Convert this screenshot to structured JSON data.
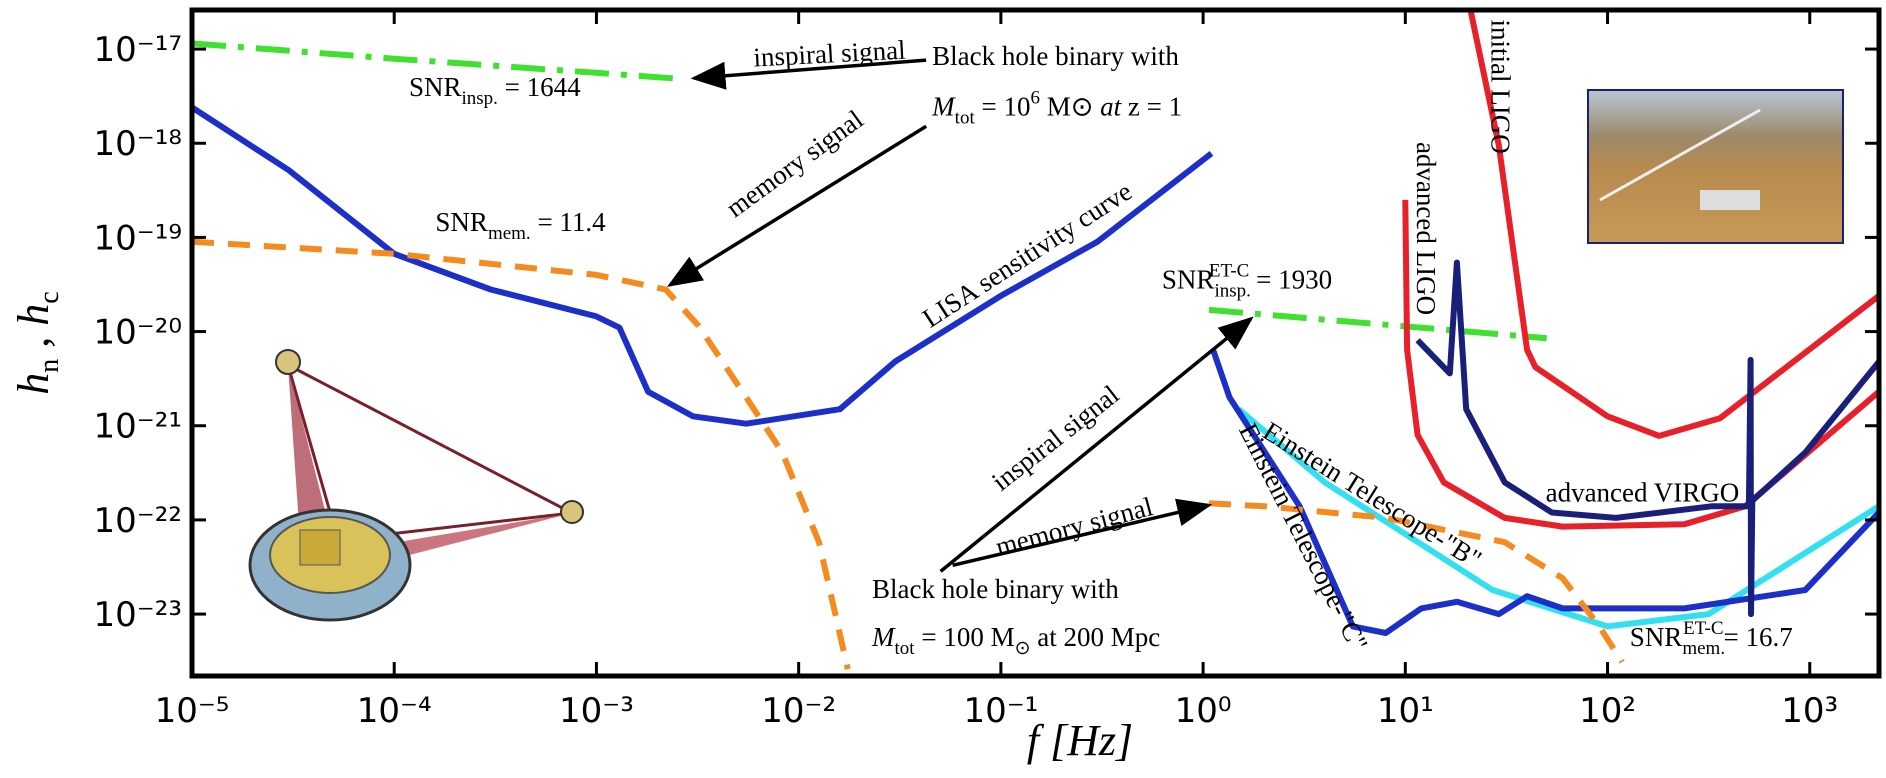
{
  "chart_data": {
    "type": "line",
    "log_x": true,
    "log_y": true,
    "xlabel": "f [Hz]",
    "ylabel": [
      "h",
      "n",
      " , ",
      "h",
      "c"
    ],
    "xlim": [
      1e-05,
      2200
    ],
    "ylim": [
      2.2e-24,
      2.6e-17
    ],
    "xticks": [
      {
        "value": 1e-05,
        "label": "10⁻⁵"
      },
      {
        "value": 0.0001,
        "label": "10⁻⁴"
      },
      {
        "value": 0.001,
        "label": "10⁻³"
      },
      {
        "value": 0.01,
        "label": "10⁻²"
      },
      {
        "value": 0.1,
        "label": "10⁻¹"
      },
      {
        "value": 1,
        "label": "10⁰"
      },
      {
        "value": 10,
        "label": "10¹"
      },
      {
        "value": 100,
        "label": "10²"
      },
      {
        "value": 1000,
        "label": "10³"
      }
    ],
    "yticks": [
      {
        "value": 1e-17,
        "label": "10⁻¹⁷"
      },
      {
        "value": 1e-18,
        "label": "10⁻¹⁸"
      },
      {
        "value": 1e-19,
        "label": "10⁻¹⁹"
      },
      {
        "value": 1e-20,
        "label": "10⁻²⁰"
      },
      {
        "value": 1e-21,
        "label": "10⁻²¹"
      },
      {
        "value": 1e-22,
        "label": "10⁻²²"
      },
      {
        "value": 1e-23,
        "label": "10⁻²³"
      }
    ],
    "series": [
      {
        "color": "#3fe030",
        "linestyle": "dash-dot",
        "x": [
          1e-05,
          0.0001,
          0.001,
          0.0027
        ],
        "values": [
          1.15e-17,
          7.9e-18,
          5.6e-18,
          4.8e-18
        ]
      },
      {
        "color": "#1d2fc9",
        "linestyle": "solid",
        "x": [
          1e-05,
          3e-05,
          0.0001,
          0.0003,
          0.001,
          0.0013,
          0.0018,
          0.003,
          0.0055,
          0.016,
          0.03,
          0.1,
          0.3,
          1.1
        ],
        "values": [
          2.4e-18,
          5.2e-19,
          6.7e-20,
          2.8e-20,
          1.45e-20,
          1.1e-20,
          2.3e-21,
          1.26e-21,
          1.05e-21,
          1.5e-21,
          4.8e-21,
          2.4e-20,
          9e-20,
          7.8e-19
        ]
      },
      {
        "color": "#f58a1f",
        "linestyle": "dash",
        "x": [
          1e-05,
          0.0001,
          0.001,
          0.0022,
          0.0032,
          0.0055,
          0.0083,
          0.0126,
          0.0175
        ],
        "values": [
          9e-20,
          6.7e-20,
          4e-20,
          2.8e-20,
          1.15e-20,
          2e-21,
          5.2e-22,
          5.8e-23,
          2.6e-24
        ]
      },
      {
        "color": "#3fe030",
        "linestyle": "dash-dot",
        "x": [
          1.07,
          50
        ],
        "values": [
          1.7e-20,
          8.5e-21
        ]
      },
      {
        "color": "#33e0f0",
        "linestyle": "solid",
        "x": [
          1.5,
          4,
          27,
          100,
          316,
          2200
        ],
        "values": [
          1.5e-21,
          2.5e-22,
          1.8e-23,
          7.4e-24,
          1e-23,
          1.4e-22
        ]
      },
      {
        "color": "#1d2fc9",
        "linestyle": "solid",
        "x": [
          1.12,
          1.35,
          3,
          5.5,
          8,
          12,
          18,
          29,
          40,
          60,
          240,
          950,
          2200
        ],
        "values": [
          6.4e-21,
          2e-21,
          1.4e-22,
          7.4e-24,
          6.3e-24,
          1.15e-23,
          1.35e-23,
          1e-23,
          1.55e-23,
          1.15e-23,
          1.15e-23,
          1.8e-23,
          1.2e-22
        ]
      },
      {
        "color": "#f58a1f",
        "linestyle": "dash",
        "x": [
          1.07,
          2,
          8,
          31,
          60,
          91,
          118
        ],
        "values": [
          1.5e-22,
          1.4e-22,
          1.05e-22,
          5.8e-23,
          2.4e-23,
          7.4e-24,
          3.1e-24
        ]
      },
      {
        "color": "#e8202a",
        "linestyle": "solid",
        "x": [
          21,
          29,
          40,
          44,
          100,
          180,
          360,
          2200
        ],
        "values": [
          2.6e-17,
          9.5e-19,
          6.4e-21,
          4.2e-21,
          1.26e-21,
          7.8e-22,
          1.2e-21,
          2.4e-20
        ]
      },
      {
        "color": "#e8202a",
        "linestyle": "solid",
        "x": [
          10,
          10.2,
          11.5,
          15.5,
          31,
          60,
          240,
          480,
          2200
        ],
        "values": [
          2.5e-19,
          6.4e-21,
          8e-22,
          2.5e-22,
          1.05e-22,
          8.5e-23,
          9e-23,
          1.4e-22,
          2.3e-21
        ]
      },
      {
        "color": "#1a1f7a",
        "linestyle": "solid",
        "x": [
          11.5,
          16.6,
          18,
          20,
          31,
          53,
          110,
          330,
          500,
          510,
          512,
          520,
          950,
          2200
        ],
        "values": [
          8.1e-21,
          3.6e-21,
          5.4e-20,
          1.5e-21,
          2.5e-22,
          1.2e-22,
          1.05e-22,
          1.4e-22,
          1.4e-22,
          5e-21,
          1e-23,
          1.6e-22,
          5.2e-22,
          4.8e-21
        ]
      }
    ],
    "annotations": [
      [
        "inspiral signal"
      ],
      [
        "Black hole binary with"
      ],
      [
        "M",
        "tot",
        " = 10",
        "6",
        " M",
        "⊙",
        "  at  ",
        "z",
        " = 1"
      ],
      [
        "SNR",
        "insp.",
        " = 1644"
      ],
      [
        "memory signal"
      ],
      [
        "SNR",
        "mem.",
        " = 11.4"
      ],
      [
        "LISA sensitivity curve"
      ],
      [
        "SNR",
        "insp.",
        "ET-C",
        " = 1930"
      ],
      [
        "inspiral signal"
      ],
      [
        "memory signal"
      ],
      [
        "Black hole binary with"
      ],
      [
        "M",
        "tot",
        " = 100 M",
        "⊙",
        "  at  200 Mpc"
      ],
      [
        "Einstein Telescope-\"B\""
      ],
      [
        "Einstein Telescope-\"C\""
      ],
      [
        "SNR",
        "mem.",
        "ET-C",
        "= 16.7"
      ],
      [
        "advanced VIRGO"
      ],
      [
        "advanced LIGO"
      ],
      [
        "initial LIGO"
      ]
    ]
  }
}
